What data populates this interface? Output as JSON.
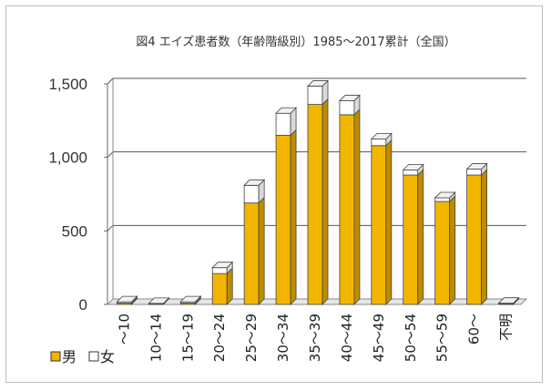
{
  "chart_data": {
    "type": "bar",
    "title": "図4 エイズ患者数（年齢階級別）1985～2017累計（全国）",
    "xlabel": "",
    "ylabel": "",
    "stacked": true,
    "ylim": [
      0,
      1500
    ],
    "yticks": [
      0,
      500,
      1000,
      1500
    ],
    "ytick_labels": [
      "0",
      "500",
      "1,000",
      "1,500"
    ],
    "grid": true,
    "legend_position": "bottom-left",
    "categories": [
      "～10",
      "10～14",
      "15～19",
      "20～24",
      "25～29",
      "30～34",
      "35～39",
      "40～44",
      "45～49",
      "50～54",
      "55～59",
      "60～",
      "不明"
    ],
    "series": [
      {
        "name": "男",
        "color": "#f2b500",
        "values": [
          10,
          3,
          10,
          210,
          690,
          1150,
          1360,
          1290,
          1080,
          880,
          700,
          880,
          5
        ]
      },
      {
        "name": "女",
        "color": "#ffffff",
        "values": [
          8,
          4,
          8,
          40,
          120,
          150,
          125,
          95,
          45,
          35,
          25,
          40,
          3
        ]
      }
    ]
  }
}
